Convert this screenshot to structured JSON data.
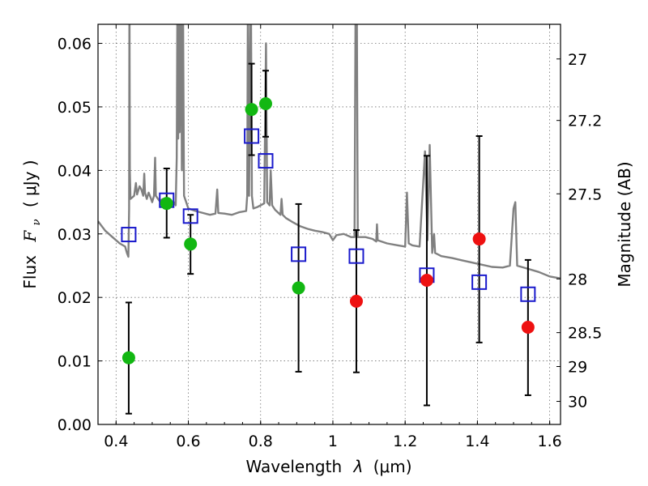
{
  "chart_data": {
    "type": "scatter",
    "xlabel_prefix": "Wavelength",
    "xlabel_symbol": "λ",
    "xlabel_units": "(μm)",
    "ylabel_prefix": "Flux",
    "ylabel_symbol": "F",
    "ylabel_subscript": "ν",
    "ylabel_units": "( μJy )",
    "y2label": "Magnitude (AB)",
    "xlim": [
      0.35,
      1.63
    ],
    "ylim": [
      0.0,
      0.063
    ],
    "xticks": [
      0.4,
      0.6,
      0.8,
      1.0,
      1.2,
      1.4,
      1.6
    ],
    "xtick_labels": [
      "0.4",
      "0.6",
      "0.8",
      "1",
      "1.2",
      "1.4",
      "1.6"
    ],
    "yticks": [
      0.0,
      0.01,
      0.02,
      0.03,
      0.04,
      0.05,
      0.06
    ],
    "ytick_labels": [
      "0.00",
      "0.01",
      "0.02",
      "0.03",
      "0.04",
      "0.05",
      "0.06"
    ],
    "mag_ticks": [
      {
        "mag": 27,
        "label": "27"
      },
      {
        "mag": 27.2,
        "label": "27.2"
      },
      {
        "mag": 27.5,
        "label": "27.5"
      },
      {
        "mag": 28,
        "label": "28"
      },
      {
        "mag": 28.5,
        "label": "28.5"
      },
      {
        "mag": 29,
        "label": "29"
      },
      {
        "mag": 30,
        "label": "30"
      }
    ],
    "grid": true,
    "colors": {
      "detection": "#12b712",
      "upper_limit": "#ee1111",
      "model": "#1a1acc",
      "sed": "#808080",
      "errorbar": "#000000"
    },
    "observed": [
      {
        "x": 0.435,
        "y": 0.0105,
        "err_low": 0.0088,
        "err_high": 0.0087,
        "type": "detection"
      },
      {
        "x": 0.54,
        "y": 0.0348,
        "err_low": 0.0054,
        "err_high": 0.0055,
        "type": "detection"
      },
      {
        "x": 0.606,
        "y": 0.0284,
        "err_low": 0.0047,
        "err_high": 0.0046,
        "type": "detection"
      },
      {
        "x": 0.775,
        "y": 0.0496,
        "err_low": 0.0072,
        "err_high": 0.0072,
        "type": "detection"
      },
      {
        "x": 0.814,
        "y": 0.0505,
        "err_low": 0.0052,
        "err_high": 0.0052,
        "type": "detection"
      },
      {
        "x": 0.905,
        "y": 0.0215,
        "err_low": 0.0132,
        "err_high": 0.0132,
        "type": "detection"
      },
      {
        "x": 1.065,
        "y": 0.0194,
        "err_low": 0.0112,
        "err_high": 0.0112,
        "type": "upper_limit"
      },
      {
        "x": 1.26,
        "y": 0.0227,
        "err_low": 0.0197,
        "err_high": 0.0196,
        "type": "upper_limit"
      },
      {
        "x": 1.405,
        "y": 0.0292,
        "err_low": 0.0163,
        "err_high": 0.0162,
        "type": "upper_limit"
      },
      {
        "x": 1.54,
        "y": 0.0153,
        "err_low": 0.0107,
        "err_high": 0.0106,
        "type": "upper_limit"
      }
    ],
    "model_points": [
      {
        "x": 0.435,
        "y": 0.0299
      },
      {
        "x": 0.54,
        "y": 0.0353
      },
      {
        "x": 0.606,
        "y": 0.0328
      },
      {
        "x": 0.775,
        "y": 0.0454
      },
      {
        "x": 0.814,
        "y": 0.0415
      },
      {
        "x": 0.905,
        "y": 0.0268
      },
      {
        "x": 1.065,
        "y": 0.0265
      },
      {
        "x": 1.26,
        "y": 0.0235
      },
      {
        "x": 1.405,
        "y": 0.0224
      },
      {
        "x": 1.54,
        "y": 0.0205
      }
    ],
    "sed_curve": [
      [
        0.35,
        0.032
      ],
      [
        0.37,
        0.0305
      ],
      [
        0.39,
        0.0295
      ],
      [
        0.41,
        0.0285
      ],
      [
        0.425,
        0.028
      ],
      [
        0.43,
        0.027
      ],
      [
        0.434,
        0.0264
      ],
      [
        0.436,
        0.034
      ],
      [
        0.437,
        0.07
      ],
      [
        0.438,
        0.04
      ],
      [
        0.44,
        0.0355
      ],
      [
        0.45,
        0.036
      ],
      [
        0.455,
        0.038
      ],
      [
        0.458,
        0.0362
      ],
      [
        0.465,
        0.0375
      ],
      [
        0.47,
        0.037
      ],
      [
        0.475,
        0.036
      ],
      [
        0.478,
        0.0395
      ],
      [
        0.48,
        0.0365
      ],
      [
        0.485,
        0.0355
      ],
      [
        0.49,
        0.0365
      ],
      [
        0.495,
        0.0358
      ],
      [
        0.5,
        0.035
      ],
      [
        0.505,
        0.036
      ],
      [
        0.508,
        0.042
      ],
      [
        0.51,
        0.036
      ],
      [
        0.52,
        0.0352
      ],
      [
        0.53,
        0.0355
      ],
      [
        0.54,
        0.035
      ],
      [
        0.55,
        0.0345
      ],
      [
        0.56,
        0.035
      ],
      [
        0.565,
        0.0345
      ],
      [
        0.568,
        0.042
      ],
      [
        0.57,
        0.07
      ],
      [
        0.572,
        0.045
      ],
      [
        0.574,
        0.07
      ],
      [
        0.576,
        0.046
      ],
      [
        0.58,
        0.07
      ],
      [
        0.582,
        0.04
      ],
      [
        0.585,
        0.07
      ],
      [
        0.588,
        0.036
      ],
      [
        0.6,
        0.034
      ],
      [
        0.62,
        0.0336
      ],
      [
        0.64,
        0.0333
      ],
      [
        0.66,
        0.033
      ],
      [
        0.675,
        0.0332
      ],
      [
        0.68,
        0.037
      ],
      [
        0.683,
        0.0333
      ],
      [
        0.7,
        0.0332
      ],
      [
        0.72,
        0.033
      ],
      [
        0.74,
        0.0334
      ],
      [
        0.76,
        0.0336
      ],
      [
        0.763,
        0.036
      ],
      [
        0.765,
        0.07
      ],
      [
        0.768,
        0.036
      ],
      [
        0.773,
        0.07
      ],
      [
        0.776,
        0.036
      ],
      [
        0.78,
        0.034
      ],
      [
        0.79,
        0.0342
      ],
      [
        0.8,
        0.0345
      ],
      [
        0.81,
        0.0348
      ],
      [
        0.815,
        0.06
      ],
      [
        0.818,
        0.035
      ],
      [
        0.825,
        0.0345
      ],
      [
        0.828,
        0.04
      ],
      [
        0.832,
        0.0345
      ],
      [
        0.84,
        0.0338
      ],
      [
        0.855,
        0.033
      ],
      [
        0.858,
        0.0355
      ],
      [
        0.861,
        0.033
      ],
      [
        0.87,
        0.0325
      ],
      [
        0.89,
        0.0318
      ],
      [
        0.91,
        0.0312
      ],
      [
        0.93,
        0.0308
      ],
      [
        0.95,
        0.0305
      ],
      [
        0.97,
        0.0303
      ],
      [
        0.99,
        0.03
      ],
      [
        1.0,
        0.029
      ],
      [
        1.01,
        0.0298
      ],
      [
        1.03,
        0.03
      ],
      [
        1.05,
        0.0295
      ],
      [
        1.06,
        0.0295
      ],
      [
        1.063,
        0.07
      ],
      [
        1.066,
        0.07
      ],
      [
        1.069,
        0.0295
      ],
      [
        1.09,
        0.0295
      ],
      [
        1.11,
        0.0292
      ],
      [
        1.12,
        0.0288
      ],
      [
        1.122,
        0.0315
      ],
      [
        1.124,
        0.029
      ],
      [
        1.15,
        0.0285
      ],
      [
        1.18,
        0.0282
      ],
      [
        1.2,
        0.028
      ],
      [
        1.205,
        0.0365
      ],
      [
        1.21,
        0.0285
      ],
      [
        1.22,
        0.0282
      ],
      [
        1.24,
        0.028
      ],
      [
        1.255,
        0.043
      ],
      [
        1.262,
        0.029
      ],
      [
        1.268,
        0.044
      ],
      [
        1.275,
        0.027
      ],
      [
        1.28,
        0.03
      ],
      [
        1.283,
        0.027
      ],
      [
        1.3,
        0.0265
      ],
      [
        1.33,
        0.0262
      ],
      [
        1.36,
        0.0258
      ],
      [
        1.4,
        0.0253
      ],
      [
        1.44,
        0.0248
      ],
      [
        1.47,
        0.0247
      ],
      [
        1.49,
        0.025
      ],
      [
        1.5,
        0.034
      ],
      [
        1.505,
        0.035
      ],
      [
        1.51,
        0.025
      ],
      [
        1.54,
        0.0245
      ],
      [
        1.57,
        0.024
      ],
      [
        1.6,
        0.0233
      ],
      [
        1.63,
        0.023
      ]
    ]
  }
}
